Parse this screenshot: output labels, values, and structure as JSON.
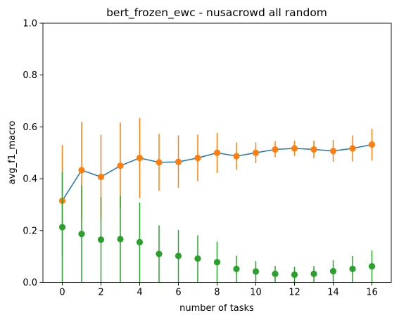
{
  "chart_data": {
    "type": "line",
    "title": "bert_frozen_ewc - nusacrowd all random",
    "xlabel": "number of tasks",
    "ylabel": "avg_f1_macro",
    "xlim": [
      -1,
      17
    ],
    "ylim": [
      0,
      1.0
    ],
    "xticks": [
      0,
      2,
      4,
      6,
      8,
      10,
      12,
      14,
      16
    ],
    "yticks": [
      0.0,
      0.2,
      0.4,
      0.6,
      0.8,
      1.0
    ],
    "ytick_labels": [
      "0.0",
      "0.2",
      "0.4",
      "0.6",
      "0.8",
      "1.0"
    ],
    "x": [
      0,
      1,
      2,
      3,
      4,
      5,
      6,
      7,
      8,
      9,
      10,
      11,
      12,
      13,
      14,
      15,
      16
    ],
    "series": [
      {
        "name": "line",
        "style": "line",
        "color": "#1f77b4",
        "values": [
          0.315,
          0.433,
          0.407,
          0.45,
          0.48,
          0.463,
          0.465,
          0.48,
          0.5,
          0.487,
          0.5,
          0.513,
          0.517,
          0.513,
          0.507,
          0.517,
          0.532
        ]
      },
      {
        "name": "upper",
        "style": "errorbar",
        "color": "#ff7f0e",
        "values": [
          0.315,
          0.433,
          0.407,
          0.45,
          0.48,
          0.463,
          0.465,
          0.48,
          0.5,
          0.487,
          0.5,
          0.513,
          0.517,
          0.513,
          0.507,
          0.517,
          0.532
        ],
        "lower": [
          0.1,
          0.245,
          0.245,
          0.285,
          0.325,
          0.353,
          0.365,
          0.39,
          0.422,
          0.435,
          0.46,
          0.483,
          0.488,
          0.48,
          0.465,
          0.467,
          0.47
        ],
        "upper": [
          0.53,
          0.62,
          0.57,
          0.617,
          0.635,
          0.573,
          0.567,
          0.57,
          0.577,
          0.54,
          0.54,
          0.545,
          0.547,
          0.547,
          0.55,
          0.567,
          0.593
        ]
      },
      {
        "name": "lower",
        "style": "errorbar",
        "color": "#2ca02c",
        "values": [
          0.213,
          0.187,
          0.165,
          0.167,
          0.155,
          0.11,
          0.102,
          0.092,
          0.078,
          0.052,
          0.042,
          0.033,
          0.03,
          0.033,
          0.043,
          0.052,
          0.062
        ],
        "lower": [
          0.0,
          0.0,
          0.0,
          0.0,
          0.0,
          0.0,
          0.0,
          0.0,
          0.0,
          0.0,
          0.0,
          0.0,
          0.0,
          0.0,
          0.0,
          0.0,
          0.0
        ],
        "upper": [
          0.428,
          0.375,
          0.33,
          0.335,
          0.308,
          0.22,
          0.202,
          0.182,
          0.157,
          0.103,
          0.082,
          0.063,
          0.06,
          0.063,
          0.085,
          0.102,
          0.123
        ]
      }
    ]
  }
}
